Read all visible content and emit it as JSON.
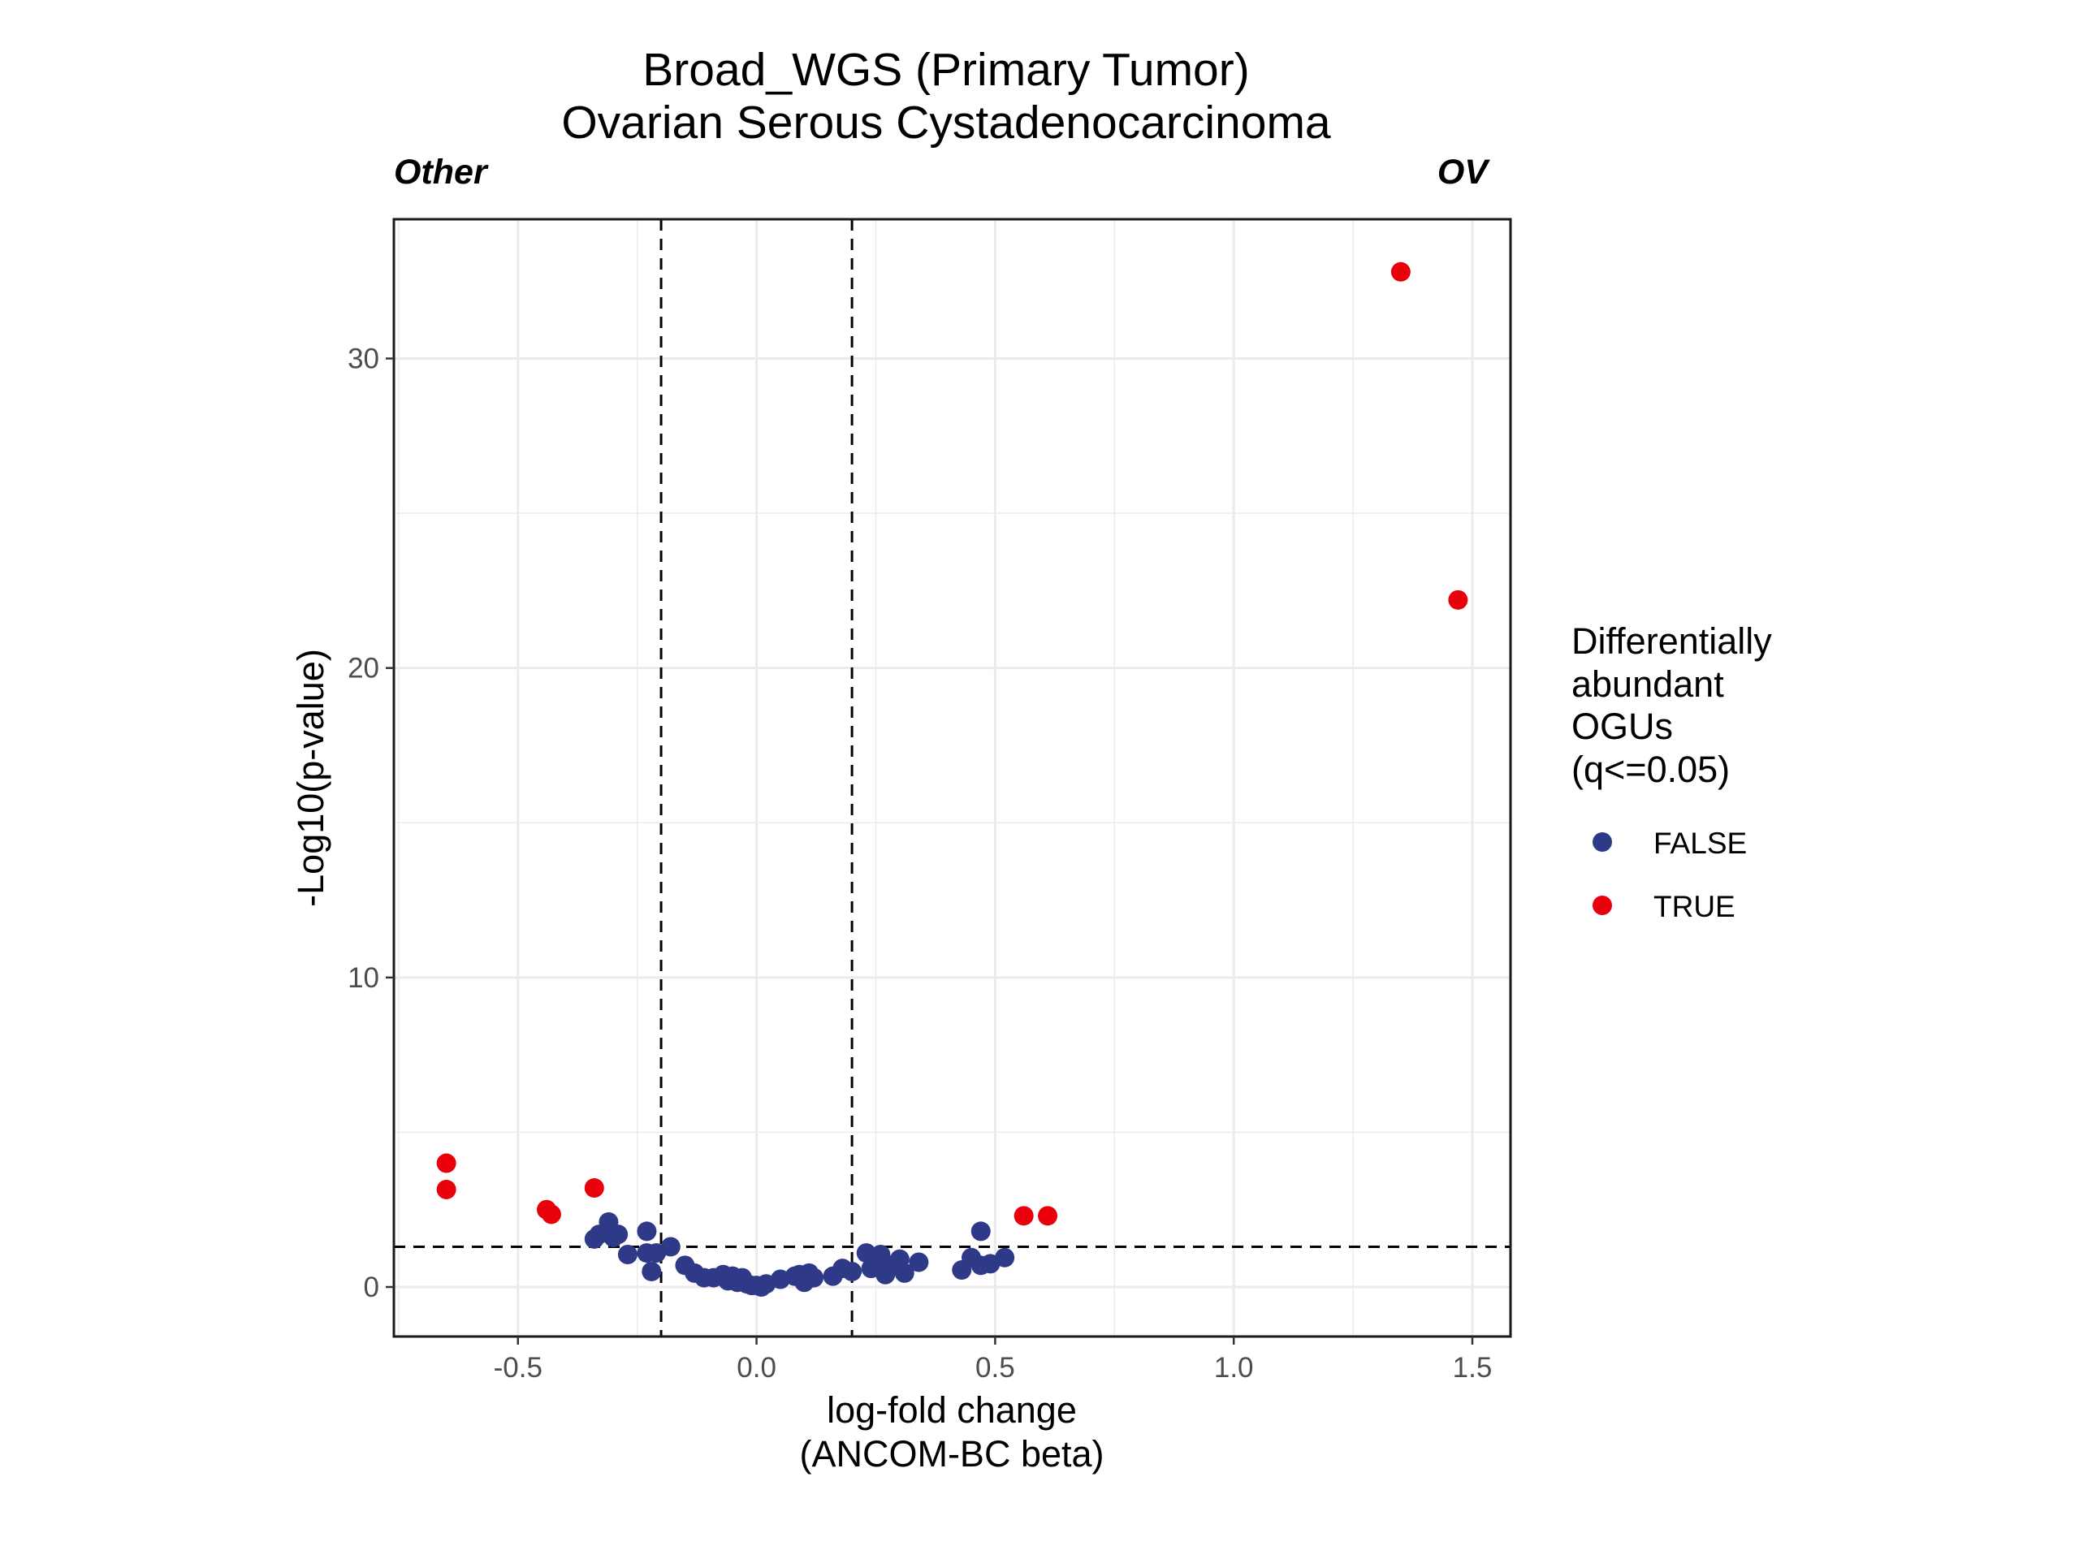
{
  "chart_data": {
    "type": "scatter",
    "title_lines": [
      "Broad_WGS (Primary Tumor)",
      "Ovarian Serous Cystadenocarcinoma"
    ],
    "left_label": "Other",
    "right_label": "OV",
    "xlabel_lines": [
      "log-fold change",
      "(ANCOM-BC beta)"
    ],
    "ylabel": "-Log10(p-value)",
    "xlim": [
      -0.76,
      1.58
    ],
    "ylim": [
      -1.6,
      34.5
    ],
    "x_ticks": [
      -0.5,
      0.0,
      0.5,
      1.0,
      1.5
    ],
    "x_tick_labels": [
      "-0.5",
      "0.0",
      "0.5",
      "1.0",
      "1.5"
    ],
    "y_ticks": [
      0,
      10,
      20,
      30
    ],
    "y_tick_labels": [
      "0",
      "10",
      "20",
      "30"
    ],
    "grid": true,
    "reference_lines": {
      "vertical": [
        -0.2,
        0.2
      ],
      "horizontal": [
        1.3
      ],
      "style": "dashed"
    },
    "legend": {
      "title_lines": [
        "Differentially",
        "abundant",
        "OGUs",
        "(q<=0.05)"
      ],
      "placement": "right",
      "entries": [
        {
          "label": "FALSE",
          "color": "#2E3A87"
        },
        {
          "label": "TRUE",
          "color": "#E8000B"
        }
      ]
    },
    "series": [
      {
        "name": "FALSE",
        "color": "#2E3A87",
        "points": [
          [
            -0.34,
            1.55
          ],
          [
            -0.33,
            1.7
          ],
          [
            -0.31,
            1.85
          ],
          [
            -0.31,
            2.1
          ],
          [
            -0.3,
            1.6
          ],
          [
            -0.29,
            1.7
          ],
          [
            -0.27,
            1.05
          ],
          [
            -0.23,
            1.8
          ],
          [
            -0.23,
            1.1
          ],
          [
            -0.22,
            0.5
          ],
          [
            -0.21,
            1.1
          ],
          [
            -0.18,
            1.3
          ],
          [
            -0.15,
            0.7
          ],
          [
            -0.13,
            0.45
          ],
          [
            -0.11,
            0.3
          ],
          [
            -0.09,
            0.3
          ],
          [
            -0.07,
            0.4
          ],
          [
            -0.06,
            0.2
          ],
          [
            -0.05,
            0.35
          ],
          [
            -0.04,
            0.15
          ],
          [
            -0.03,
            0.3
          ],
          [
            -0.02,
            0.1
          ],
          [
            -0.01,
            0.05
          ],
          [
            0.0,
            0.05
          ],
          [
            0.01,
            0.0
          ],
          [
            0.02,
            0.1
          ],
          [
            0.05,
            0.25
          ],
          [
            0.08,
            0.35
          ],
          [
            0.09,
            0.4
          ],
          [
            0.1,
            0.15
          ],
          [
            0.11,
            0.45
          ],
          [
            0.12,
            0.3
          ],
          [
            0.16,
            0.35
          ],
          [
            0.18,
            0.6
          ],
          [
            0.2,
            0.5
          ],
          [
            0.23,
            1.1
          ],
          [
            0.24,
            0.6
          ],
          [
            0.25,
            0.9
          ],
          [
            0.26,
            1.05
          ],
          [
            0.27,
            0.4
          ],
          [
            0.28,
            0.7
          ],
          [
            0.3,
            0.9
          ],
          [
            0.31,
            0.45
          ],
          [
            0.34,
            0.8
          ],
          [
            0.43,
            0.55
          ],
          [
            0.45,
            0.95
          ],
          [
            0.47,
            1.8
          ],
          [
            0.47,
            0.7
          ],
          [
            0.49,
            0.75
          ],
          [
            0.52,
            0.95
          ]
        ]
      },
      {
        "name": "TRUE",
        "color": "#E8000B",
        "points": [
          [
            -0.65,
            4.0
          ],
          [
            -0.65,
            3.15
          ],
          [
            -0.44,
            2.5
          ],
          [
            -0.43,
            2.35
          ],
          [
            -0.34,
            3.2
          ],
          [
            0.56,
            2.3
          ],
          [
            0.61,
            2.3
          ],
          [
            1.35,
            32.8
          ],
          [
            1.47,
            22.2
          ]
        ]
      }
    ]
  }
}
